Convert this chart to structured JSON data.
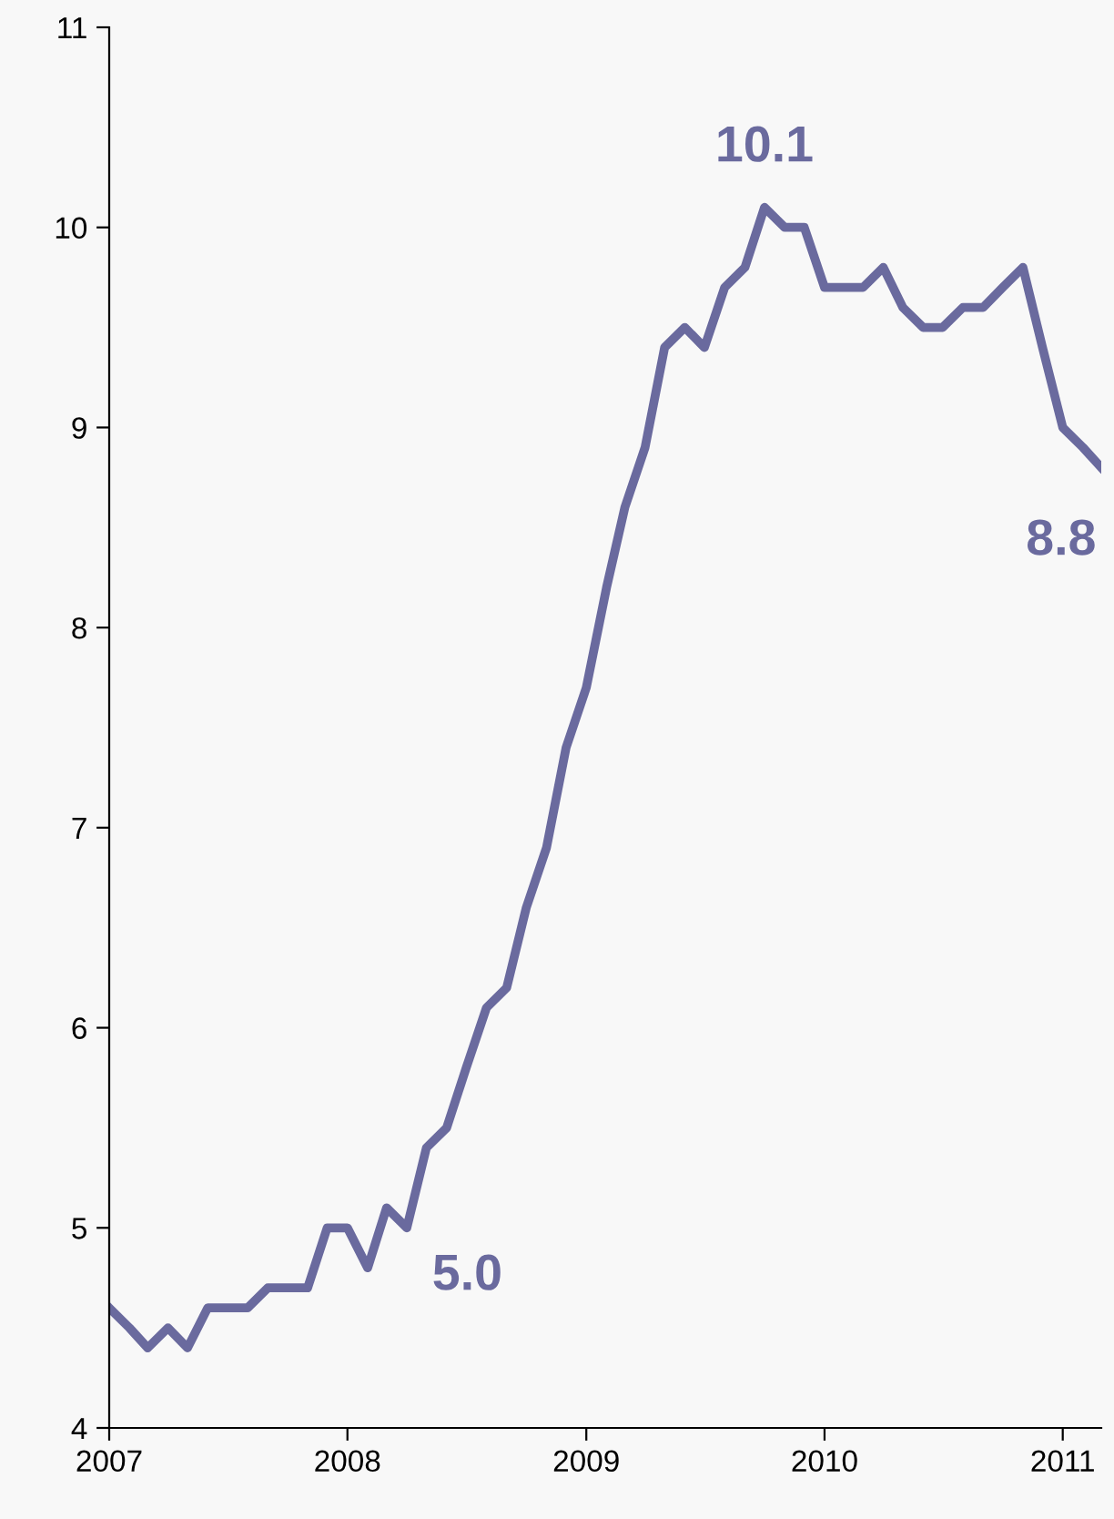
{
  "chart_data": {
    "type": "line",
    "x": [
      "2007-01",
      "2007-02",
      "2007-03",
      "2007-04",
      "2007-05",
      "2007-06",
      "2007-07",
      "2007-08",
      "2007-09",
      "2007-10",
      "2007-11",
      "2007-12",
      "2008-01",
      "2008-02",
      "2008-03",
      "2008-04",
      "2008-05",
      "2008-06",
      "2008-07",
      "2008-08",
      "2008-09",
      "2008-10",
      "2008-11",
      "2008-12",
      "2009-01",
      "2009-02",
      "2009-03",
      "2009-04",
      "2009-05",
      "2009-06",
      "2009-07",
      "2009-08",
      "2009-09",
      "2009-10",
      "2009-11",
      "2009-12",
      "2010-01",
      "2010-02",
      "2010-03",
      "2010-04",
      "2010-05",
      "2010-06",
      "2010-07",
      "2010-08",
      "2010-09",
      "2010-10",
      "2010-11",
      "2010-12",
      "2011-01",
      "2011-02",
      "2011-03"
    ],
    "series": [
      {
        "color": "#6a6a9e",
        "values": [
          4.6,
          4.5,
          4.4,
          4.5,
          4.4,
          4.6,
          4.6,
          4.6,
          4.7,
          4.7,
          4.7,
          5.0,
          5.0,
          4.8,
          5.1,
          5.0,
          5.4,
          5.5,
          5.8,
          6.1,
          6.2,
          6.6,
          6.9,
          7.4,
          7.7,
          8.2,
          8.6,
          8.9,
          9.4,
          9.5,
          9.4,
          9.7,
          9.8,
          10.1,
          10.0,
          10.0,
          9.7,
          9.7,
          9.7,
          9.8,
          9.6,
          9.5,
          9.5,
          9.6,
          9.6,
          9.7,
          9.8,
          9.4,
          9.0,
          8.9,
          8.8
        ]
      }
    ],
    "annotations": [
      {
        "text": "10.1",
        "x": "2009-10",
        "y": 10.1
      },
      {
        "text": "8.8",
        "x": "2011-03",
        "y": 8.8
      },
      {
        "text": "5.0",
        "x": "2008-04",
        "y": 5.0
      }
    ],
    "xlim": [
      "2007-01",
      "2011-03"
    ],
    "xticks": [
      {
        "value": "2007-01",
        "label": "2007"
      },
      {
        "value": "2008-01",
        "label": "2008"
      },
      {
        "value": "2009-01",
        "label": "2009"
      },
      {
        "value": "2010-01",
        "label": "2010"
      },
      {
        "value": "2011-01",
        "label": "2011"
      }
    ],
    "ylim": [
      4,
      11
    ],
    "yticks": [
      4,
      5,
      6,
      7,
      8,
      9,
      10,
      11
    ],
    "grid": false,
    "marker": "none",
    "line_style": "solid"
  }
}
